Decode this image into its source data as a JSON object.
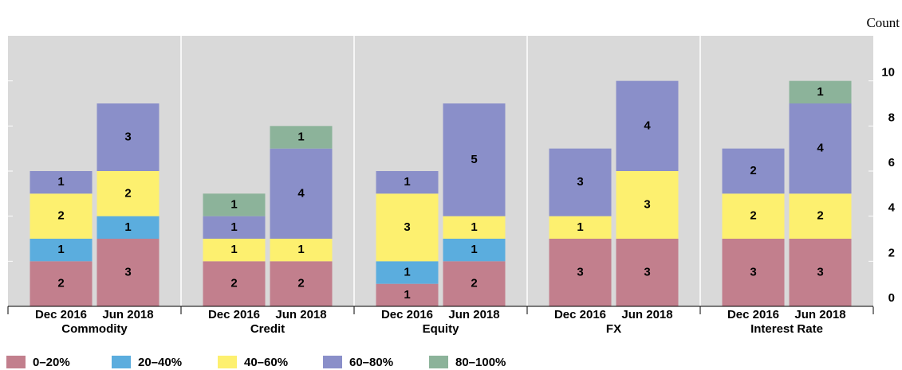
{
  "chart_data": {
    "type": "bar",
    "stacked": true,
    "y_axis_label": "Count",
    "groups": [
      "Commodity",
      "Credit",
      "Equity",
      "FX",
      "Interest Rate"
    ],
    "categories": [
      "Dec 2016",
      "Jun 2018",
      "Dec 2016",
      "Jun 2018",
      "Dec 2016",
      "Jun 2018",
      "Dec 2016",
      "Jun 2018",
      "Dec 2016",
      "Jun 2018"
    ],
    "series": [
      {
        "name": "0–20%",
        "color": "#c27f8d",
        "values": [
          2,
          3,
          2,
          2,
          1,
          2,
          3,
          3,
          3,
          3
        ]
      },
      {
        "name": "20–40%",
        "color": "#5badde",
        "values": [
          1,
          1,
          0,
          0,
          1,
          1,
          0,
          0,
          0,
          0
        ]
      },
      {
        "name": "40–60%",
        "color": "#fdf06f",
        "values": [
          2,
          2,
          1,
          1,
          3,
          1,
          1,
          3,
          2,
          2
        ]
      },
      {
        "name": "60–80%",
        "color": "#8a8fc9",
        "values": [
          1,
          3,
          1,
          4,
          1,
          5,
          3,
          4,
          2,
          4
        ]
      },
      {
        "name": "80–100%",
        "color": "#8cb39a",
        "values": [
          0,
          0,
          1,
          1,
          0,
          0,
          0,
          0,
          0,
          1
        ]
      }
    ],
    "ylim": [
      0,
      12
    ],
    "yticks": [
      0,
      2,
      4,
      6,
      8,
      10
    ],
    "y_axis_side": "right",
    "legend": "bottom"
  }
}
